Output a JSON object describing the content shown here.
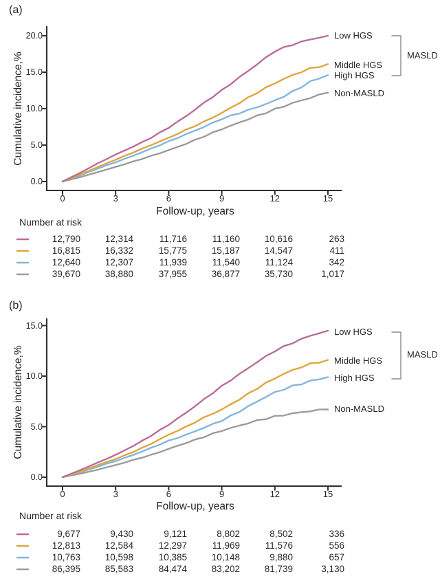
{
  "chart_data": [
    {
      "type": "line",
      "panel_label": "(a)",
      "title": "",
      "xlabel": "Follow-up, years",
      "ylabel": "Cumulative incidence,%",
      "xlim": [
        0,
        15
      ],
      "ylim": [
        0,
        20
      ],
      "grid": false,
      "legend_position": "labels-at-line-ends-right",
      "xticks": [
        0,
        3,
        6,
        9,
        12,
        15
      ],
      "yticks": [
        20,
        15,
        10,
        5,
        0
      ],
      "ytick_labels": [
        "20.0",
        "15.0",
        "10.0",
        "5.0",
        "0.0"
      ],
      "x_years": [
        0,
        1,
        2,
        3,
        4,
        5,
        6,
        7,
        8,
        9,
        10,
        11,
        12,
        13,
        14,
        15
      ],
      "series": [
        {
          "name": "Low HGS",
          "color": "#b96d9d",
          "values": [
            0,
            1.2,
            2.5,
            3.7,
            4.8,
            6.0,
            7.4,
            9.0,
            10.8,
            12.5,
            14.3,
            16.1,
            17.9,
            18.8,
            19.5,
            20.0
          ]
        },
        {
          "name": "Middle HGS",
          "color": "#dfa63e",
          "values": [
            0,
            0.95,
            2.0,
            3.0,
            4.0,
            5.0,
            6.0,
            7.1,
            8.2,
            9.4,
            10.8,
            12.2,
            13.5,
            14.6,
            15.5,
            16.1
          ]
        },
        {
          "name": "High HGS",
          "color": "#82b6de",
          "values": [
            0,
            0.85,
            1.8,
            2.65,
            3.55,
            4.5,
            5.5,
            6.5,
            7.5,
            8.6,
            9.4,
            10.2,
            11.1,
            12.3,
            13.7,
            14.6
          ]
        },
        {
          "name": "Non-MASLD",
          "color": "#9c9c9c",
          "values": [
            0,
            0.6,
            1.3,
            2.0,
            2.75,
            3.5,
            4.3,
            5.2,
            6.2,
            7.2,
            8.1,
            9.0,
            9.9,
            10.75,
            11.5,
            12.2
          ]
        }
      ],
      "group_annotation": {
        "label": "MASLD",
        "applies_to": [
          "Low HGS",
          "Middle HGS",
          "High HGS"
        ]
      },
      "number_at_risk": {
        "header": "Number at risk",
        "times": [
          0,
          3,
          6,
          9,
          12,
          15
        ],
        "rows": [
          {
            "series": "Low HGS",
            "color": "#b96d9d",
            "counts": [
              "12,790",
              "12,314",
              "11,716",
              "11,160",
              "10,616",
              "263"
            ]
          },
          {
            "series": "Middle HGS",
            "color": "#dfa63e",
            "counts": [
              "16,815",
              "16,332",
              "15,775",
              "15,187",
              "14,547",
              "411"
            ]
          },
          {
            "series": "High HGS",
            "color": "#82b6de",
            "counts": [
              "12,640",
              "12,307",
              "11,939",
              "11,540",
              "11,124",
              "342"
            ]
          },
          {
            "series": "Non-MASLD",
            "color": "#9c9c9c",
            "counts": [
              "39,670",
              "38,880",
              "37,955",
              "36,877",
              "35,730",
              "1,017"
            ]
          }
        ]
      }
    },
    {
      "type": "line",
      "panel_label": "(b)",
      "title": "",
      "xlabel": "Follow-up, years",
      "ylabel": "Cumulative incidence,%",
      "xlim": [
        0,
        15
      ],
      "ylim": [
        0,
        15
      ],
      "grid": false,
      "legend_position": "labels-at-line-ends-right",
      "xticks": [
        0,
        3,
        6,
        9,
        12,
        15
      ],
      "yticks": [
        15,
        10,
        5,
        0
      ],
      "ytick_labels": [
        "15.0",
        "10.0",
        "5.0",
        "0.0"
      ],
      "x_years": [
        0,
        1,
        2,
        3,
        4,
        5,
        6,
        7,
        8,
        9,
        10,
        11,
        12,
        13,
        14,
        15
      ],
      "series": [
        {
          "name": "Low HGS",
          "color": "#b96d9d",
          "values": [
            0,
            0.7,
            1.45,
            2.2,
            3.1,
            4.1,
            5.2,
            6.4,
            7.7,
            9.0,
            10.2,
            11.4,
            12.5,
            13.3,
            14.0,
            14.5
          ]
        },
        {
          "name": "Middle HGS",
          "color": "#dfa63e",
          "values": [
            0,
            0.55,
            1.2,
            1.8,
            2.5,
            3.3,
            4.2,
            5.0,
            5.9,
            6.7,
            7.7,
            8.8,
            9.8,
            10.6,
            11.2,
            11.6
          ]
        },
        {
          "name": "High HGS",
          "color": "#82b6de",
          "values": [
            0,
            0.5,
            1.05,
            1.6,
            2.2,
            2.9,
            3.6,
            4.2,
            4.9,
            5.6,
            6.5,
            7.5,
            8.4,
            9.0,
            9.5,
            9.9
          ]
        },
        {
          "name": "Non-MASLD",
          "color": "#9c9c9c",
          "values": [
            0,
            0.35,
            0.75,
            1.2,
            1.7,
            2.2,
            2.8,
            3.4,
            4.0,
            4.6,
            5.1,
            5.6,
            6.0,
            6.3,
            6.55,
            6.7
          ]
        }
      ],
      "group_annotation": {
        "label": "MASLD",
        "applies_to": [
          "Low HGS",
          "Middle HGS",
          "High HGS"
        ]
      },
      "number_at_risk": {
        "header": "Number at risk",
        "times": [
          0,
          3,
          6,
          9,
          12,
          15
        ],
        "rows": [
          {
            "series": "Low HGS",
            "color": "#b96d9d",
            "counts": [
              "9,677",
              "9,430",
              "9,121",
              "8,802",
              "8,502",
              "336"
            ]
          },
          {
            "series": "Middle HGS",
            "color": "#dfa63e",
            "counts": [
              "12,813",
              "12,584",
              "12,297",
              "11,969",
              "11,576",
              "556"
            ]
          },
          {
            "series": "High HGS",
            "color": "#82b6de",
            "counts": [
              "10,763",
              "10,598",
              "10,385",
              "10,148",
              "9,880",
              "657"
            ]
          },
          {
            "series": "Non-MASLD",
            "color": "#9c9c9c",
            "counts": [
              "86,395",
              "85,583",
              "84,474",
              "83,202",
              "81,739",
              "3,130"
            ]
          }
        ]
      }
    }
  ],
  "colors": {
    "axis": "#2e2e2e",
    "text": "#262626",
    "bracket": "#8a8a8a"
  }
}
